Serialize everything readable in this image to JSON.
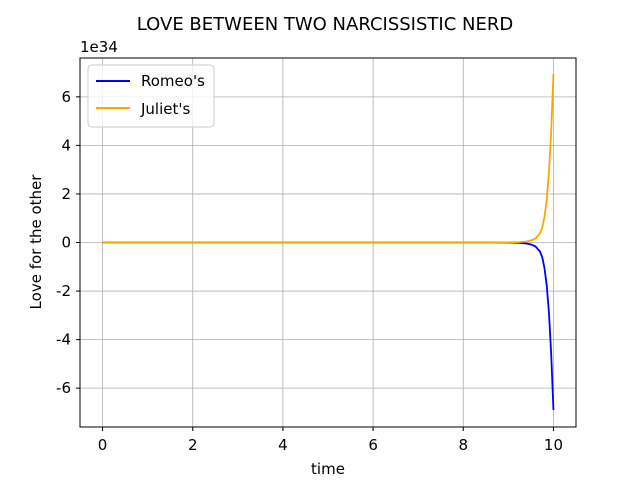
{
  "chart_data": {
    "type": "line",
    "title": "LOVE BETWEEN TWO NARCISSISTIC NERD",
    "xlabel": "time",
    "ylabel": "Love for the other",
    "y_offset_text": "1e34",
    "xlim": [
      -0.5,
      10.5
    ],
    "ylim": [
      -7.6,
      7.6
    ],
    "y_scale_factor": 1e+34,
    "xticks": [
      0,
      2,
      4,
      6,
      8,
      10
    ],
    "xtick_labels": [
      "0",
      "2",
      "4",
      "6",
      "8",
      "10"
    ],
    "yticks": [
      -6,
      -4,
      -2,
      0,
      2,
      4,
      6
    ],
    "ytick_labels": [
      "-6",
      "-4",
      "-2",
      "0",
      "2",
      "4",
      "6"
    ],
    "grid": true,
    "legend_position": "upper-left",
    "series": [
      {
        "name": "Romeo's",
        "color": "#0000ff",
        "x": [
          0,
          1,
          2,
          3,
          4,
          5,
          6,
          7,
          8,
          8.5,
          9,
          9.2,
          9.4,
          9.5,
          9.6,
          9.7,
          9.75,
          9.8,
          9.85,
          9.9,
          9.95,
          10
        ],
        "y": [
          0,
          0,
          0,
          0,
          0,
          0,
          0,
          0,
          0,
          0,
          -0.004,
          -0.012,
          -0.04,
          -0.08,
          -0.16,
          -0.37,
          -0.6,
          -1.05,
          -1.75,
          -2.9,
          -4.6,
          -6.9
        ]
      },
      {
        "name": "Juliet's",
        "color": "#ffa500",
        "x": [
          0,
          1,
          2,
          3,
          4,
          5,
          6,
          7,
          8,
          8.5,
          9,
          9.2,
          9.4,
          9.5,
          9.6,
          9.7,
          9.75,
          9.8,
          9.85,
          9.9,
          9.95,
          10
        ],
        "y": [
          0,
          0,
          0,
          0,
          0,
          0,
          0,
          0,
          0,
          0,
          0.004,
          0.012,
          0.04,
          0.08,
          0.16,
          0.37,
          0.6,
          1.05,
          1.75,
          2.9,
          4.6,
          6.95
        ]
      }
    ]
  }
}
